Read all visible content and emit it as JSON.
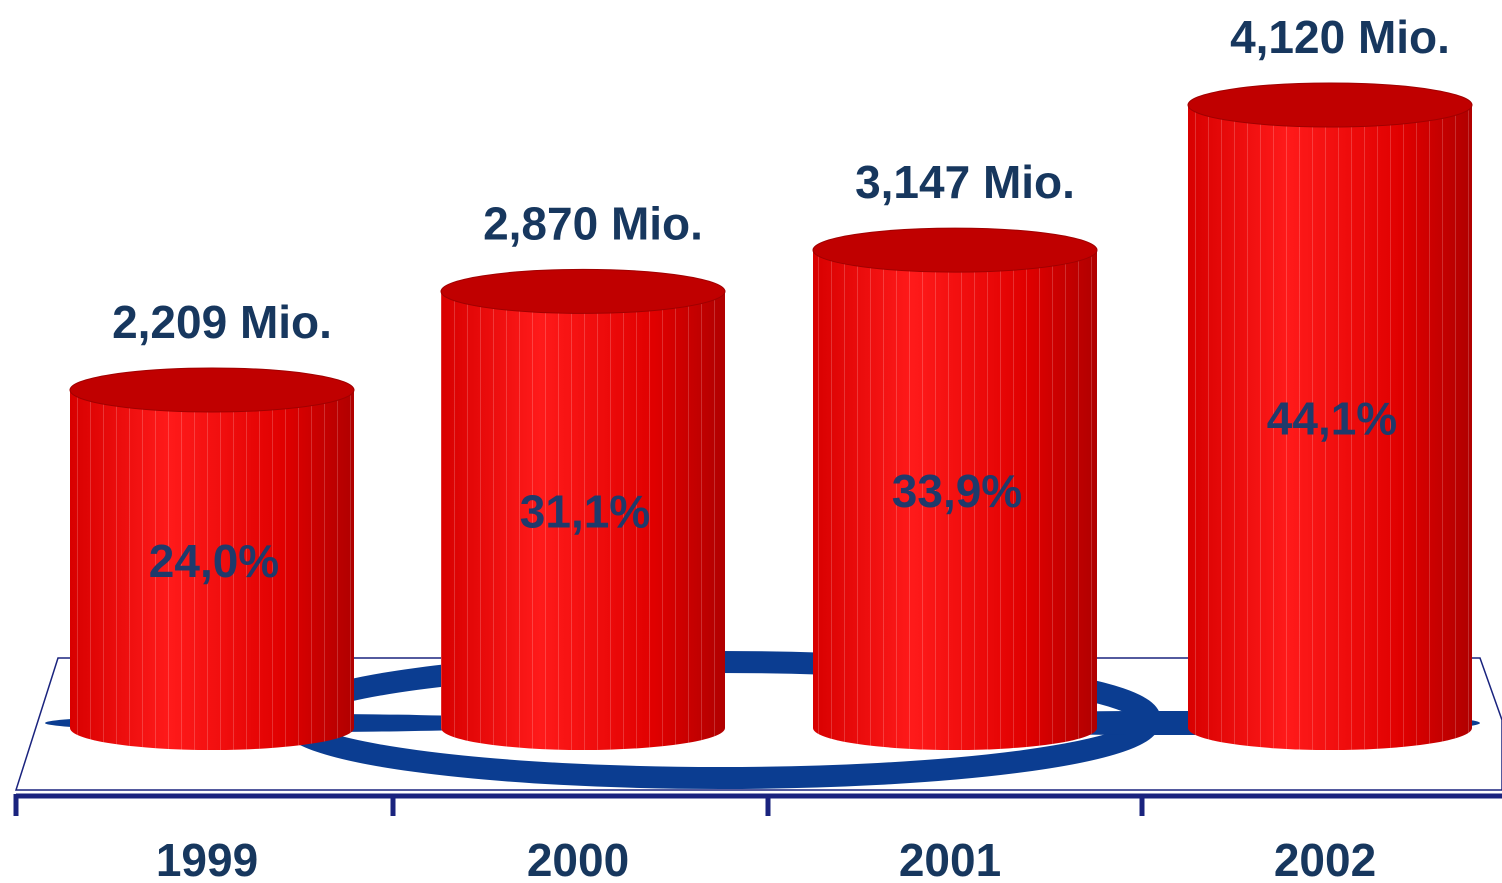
{
  "chart_data": {
    "type": "bar",
    "style": "3d-cylinder",
    "categories": [
      "1999",
      "2000",
      "2001",
      "2002"
    ],
    "values_mio": [
      2.209,
      2.87,
      3.147,
      4.12
    ],
    "value_labels": [
      "2,209 Mio.",
      "2,870 Mio.",
      "3,147 Mio.",
      "4,120 Mio."
    ],
    "percent_values": [
      24.0,
      31.1,
      33.9,
      44.1
    ],
    "percent_labels": [
      "24,0%",
      "31,1%",
      "33,9%",
      "44,1%"
    ],
    "title": "",
    "xlabel": "",
    "ylabel": "",
    "grid": false,
    "legend": "none",
    "colors": {
      "bar": "#ee0000",
      "bar_highlight": "#ff2a2a",
      "bar_shadow": "#b40000",
      "bar_top": "#c00000",
      "label": "#17375e",
      "percent_label": "#1f3a6b",
      "axis": "#1a237e",
      "floor_logo": "#0b3d91"
    }
  }
}
